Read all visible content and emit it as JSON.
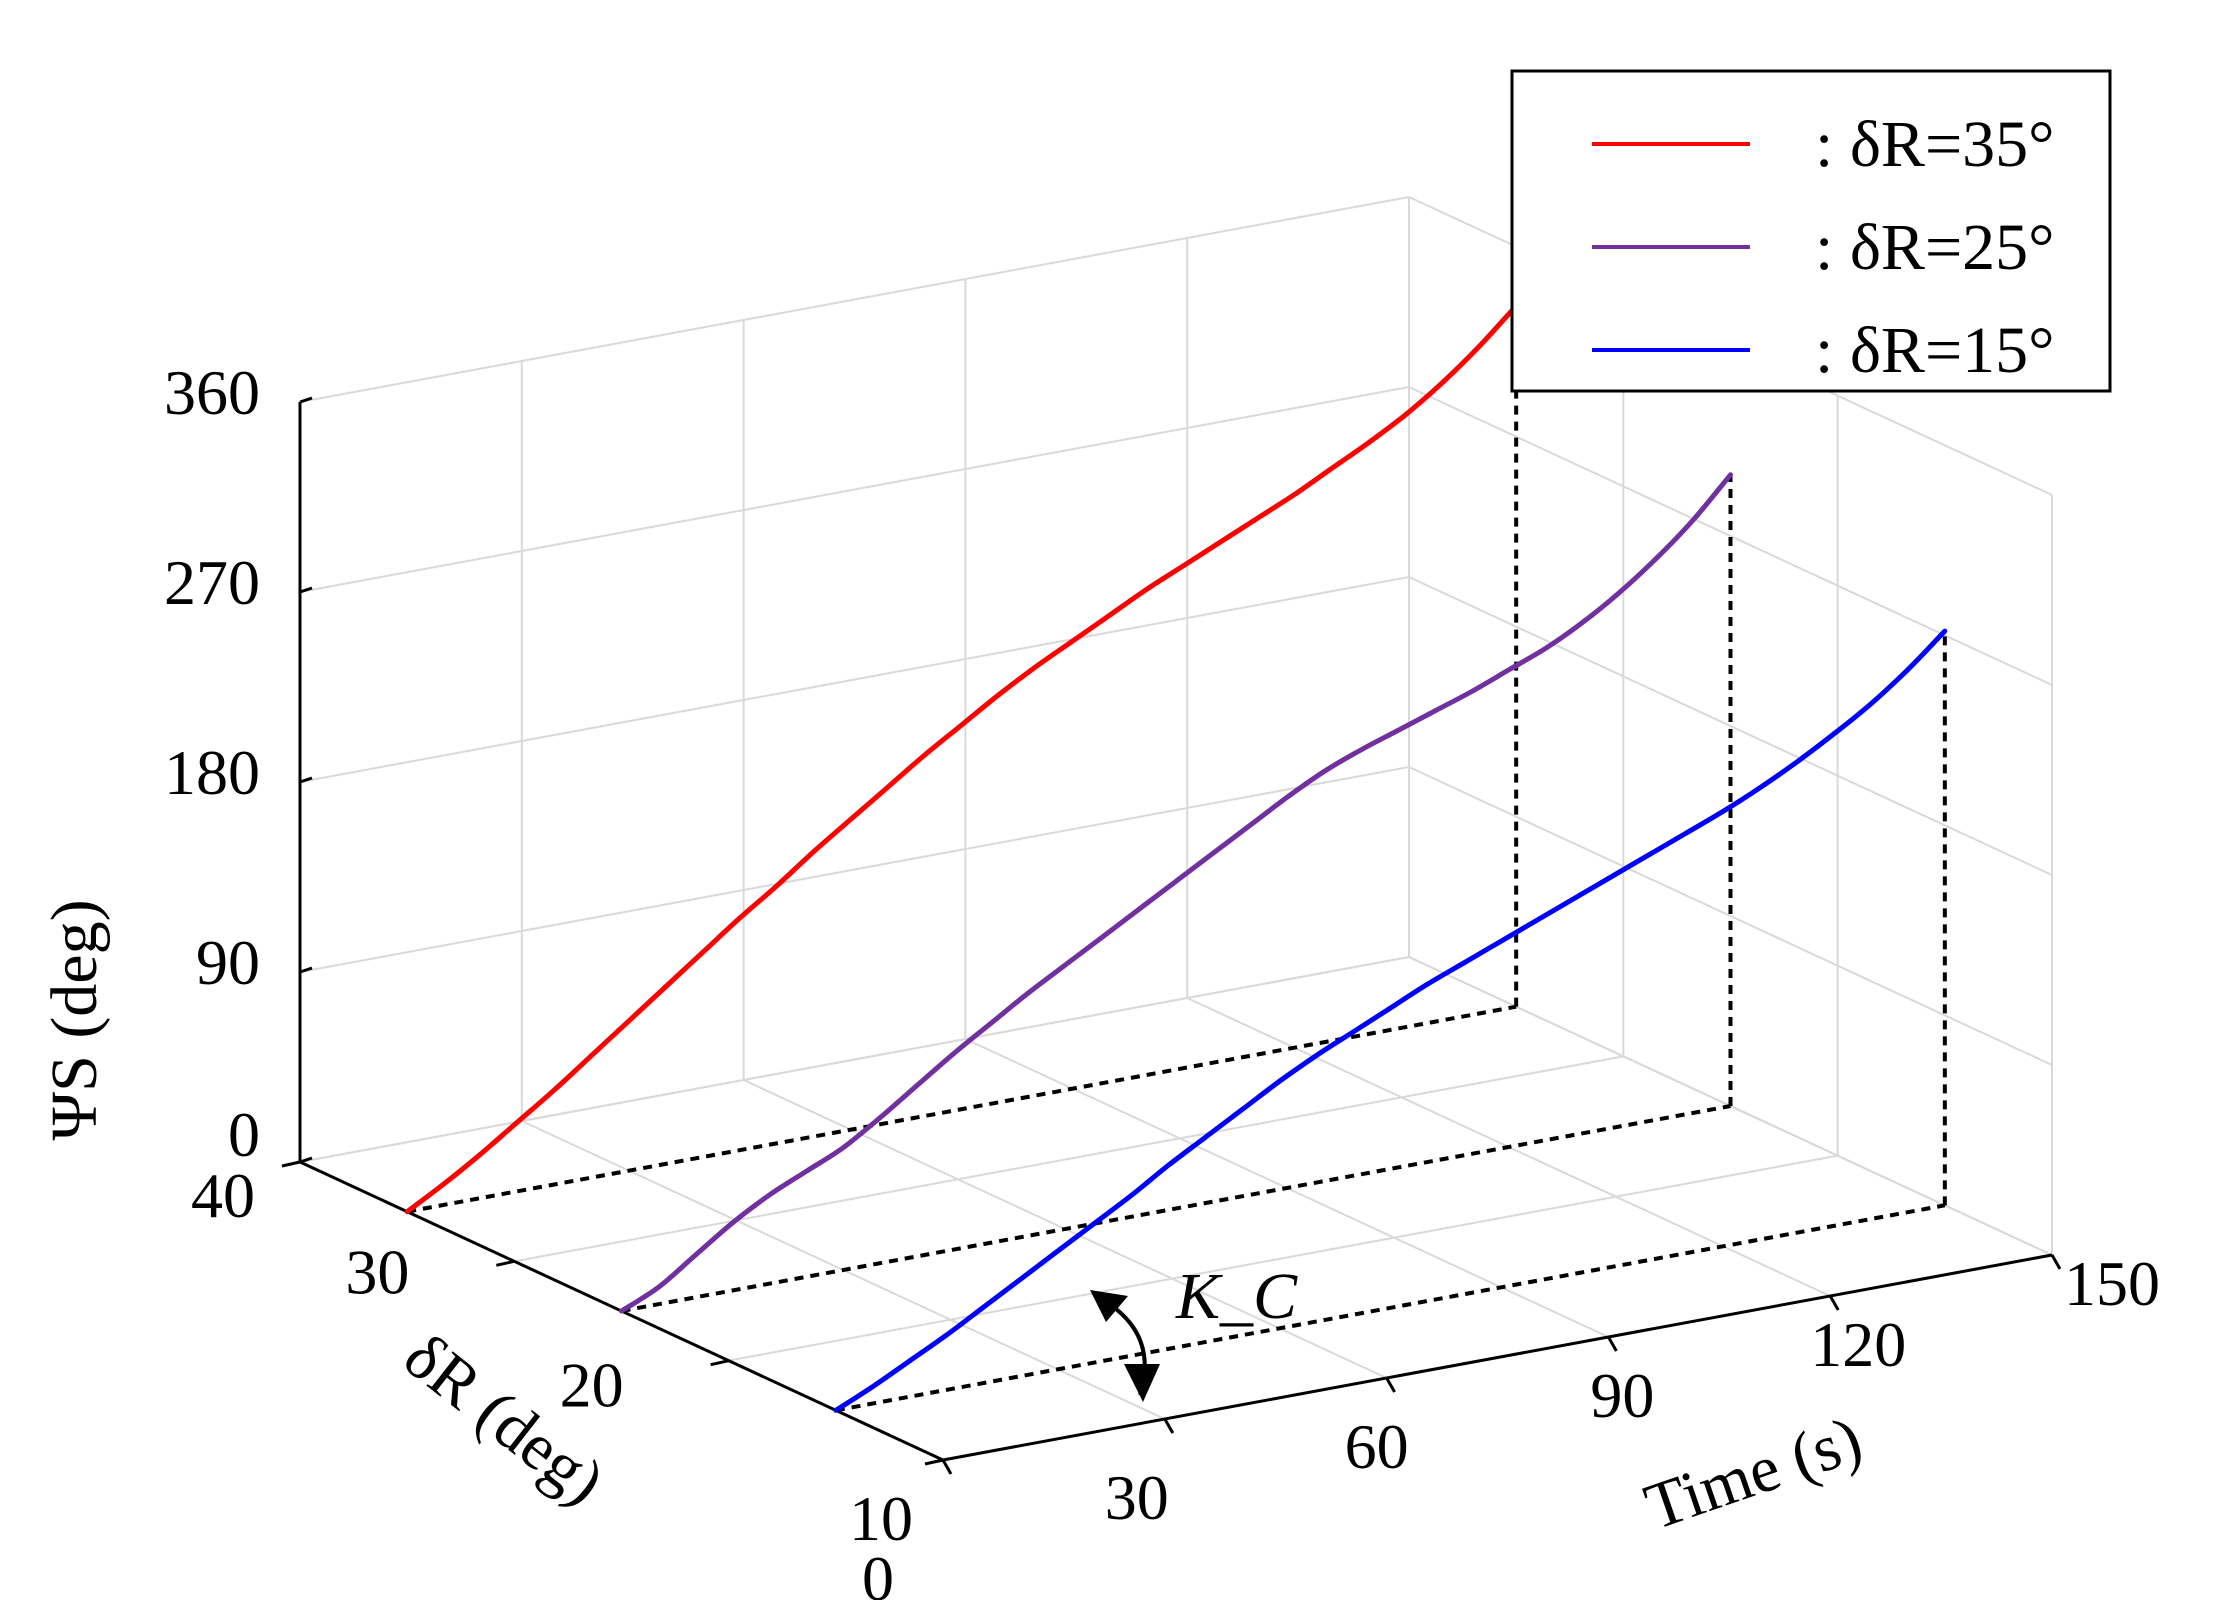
{
  "chart_data": {
    "type": "line",
    "title": "",
    "xlabel": "Time (s)",
    "ylabel": "δR (deg)",
    "zlabel": "ΨS (deg)",
    "x_ticks": [
      0,
      30,
      60,
      90,
      120,
      150
    ],
    "y_ticks": [
      10,
      20,
      30,
      40
    ],
    "z_ticks": [
      0,
      90,
      180,
      270,
      360
    ],
    "xlim": [
      0,
      150
    ],
    "ylim": [
      10,
      40
    ],
    "zlim": [
      0,
      360
    ],
    "grid": true,
    "legend_position": "top-right",
    "annotation": "K_C",
    "series": [
      {
        "name": "δR=35°",
        "legend_label": ": δR=35°",
        "color": "#ff0000",
        "delta_r": 35,
        "t": [
          0,
          5,
          10,
          15,
          20,
          25,
          30,
          35,
          40,
          45,
          50,
          55,
          60,
          65,
          70,
          75,
          80,
          85,
          90,
          95,
          100,
          105,
          110,
          115,
          120,
          125,
          130,
          135,
          140,
          145,
          150
        ],
        "psi": [
          0,
          10,
          21,
          33,
          45,
          58,
          71,
          84,
          97,
          110,
          122,
          135,
          147,
          159,
          171,
          182,
          193,
          203,
          212,
          221,
          230,
          238,
          246,
          254,
          262,
          271,
          280,
          290,
          302,
          316,
          332
        ]
      },
      {
        "name": "δR=25°",
        "legend_label": ": δR=25°",
        "color": "#7030a0",
        "delta_r": 25,
        "t": [
          0,
          5,
          10,
          15,
          20,
          25,
          30,
          35,
          40,
          45,
          50,
          55,
          60,
          65,
          70,
          75,
          80,
          85,
          90,
          95,
          100,
          105,
          110,
          115,
          120,
          125,
          130,
          135,
          140,
          145,
          150
        ],
        "psi": [
          0,
          8,
          20,
          32,
          42,
          50,
          58,
          69,
          81,
          93,
          104,
          115,
          125,
          135,
          145,
          155,
          165,
          175,
          185,
          194,
          201,
          207,
          213,
          219,
          226,
          233,
          242,
          253,
          266,
          281,
          299
        ]
      },
      {
        "name": "δR=15°",
        "legend_label": ": δR=15°",
        "color": "#0000ff",
        "delta_r": 15,
        "t": [
          0,
          5,
          10,
          15,
          20,
          25,
          30,
          35,
          40,
          45,
          50,
          55,
          60,
          65,
          70,
          75,
          80,
          85,
          90,
          95,
          100,
          105,
          110,
          115,
          120,
          125,
          130,
          135,
          140,
          145,
          150
        ],
        "psi": [
          0,
          8,
          17,
          26,
          36,
          46,
          56,
          66,
          76,
          87,
          97,
          107,
          117,
          126,
          134,
          142,
          150,
          157,
          164,
          171,
          178,
          185,
          192,
          199,
          206,
          214,
          223,
          233,
          244,
          257,
          272
        ]
      }
    ]
  }
}
